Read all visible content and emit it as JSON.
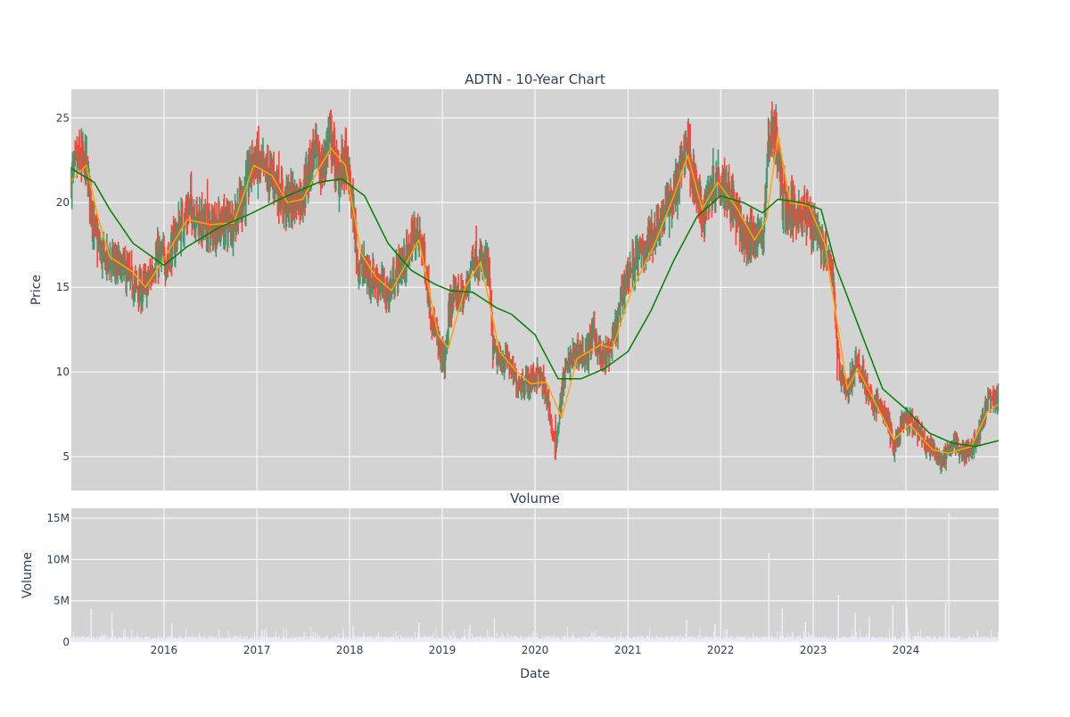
{
  "chart_data": [
    {
      "type": "candlestick",
      "title": "ADTN - 10-Year Chart",
      "ylabel": "Price",
      "xlim": [
        "2015-01-01",
        "2024-12-31"
      ],
      "ylim": [
        3.0,
        26.7
      ],
      "y_ticks": [
        5,
        10,
        15,
        20,
        25
      ],
      "grid": true,
      "colors": {
        "increasing": "#3d9970",
        "decreasing": "#ff4136",
        "ma_short": "#ffa500",
        "ma_long": "#008000",
        "plot_bg": "#d3d3d3"
      },
      "price_path": [
        [
          "2015-01-02",
          21.5
        ],
        [
          "2015-02-01",
          22.6
        ],
        [
          "2015-03-01",
          22.2
        ],
        [
          "2015-04-01",
          18.4
        ],
        [
          "2015-05-01",
          16.8
        ],
        [
          "2015-06-01",
          16.6
        ],
        [
          "2015-07-01",
          16.2
        ],
        [
          "2015-08-01",
          16.0
        ],
        [
          "2015-09-01",
          15.2
        ],
        [
          "2015-10-01",
          14.8
        ],
        [
          "2015-11-01",
          15.3
        ],
        [
          "2015-12-01",
          16.8
        ],
        [
          "2016-01-15",
          16.6
        ],
        [
          "2016-03-01",
          18.5
        ],
        [
          "2016-04-15",
          19.8
        ],
        [
          "2016-06-01",
          18.7
        ],
        [
          "2016-07-01",
          18.4
        ],
        [
          "2016-08-01",
          18.6
        ],
        [
          "2016-10-01",
          19.0
        ],
        [
          "2016-11-15",
          20.5
        ],
        [
          "2016-12-15",
          22.6
        ],
        [
          "2017-02-01",
          21.8
        ],
        [
          "2017-03-15",
          21.4
        ],
        [
          "2017-04-15",
          20.0
        ],
        [
          "2017-06-01",
          20.2
        ],
        [
          "2017-07-01",
          20.6
        ],
        [
          "2017-08-15",
          23.2
        ],
        [
          "2017-09-15",
          21.8
        ],
        [
          "2017-10-15",
          24.2
        ],
        [
          "2017-11-15",
          21.5
        ],
        [
          "2017-12-15",
          22.6
        ],
        [
          "2018-01-10",
          20.2
        ],
        [
          "2018-02-01",
          16.5
        ],
        [
          "2018-03-15",
          15.8
        ],
        [
          "2018-05-01",
          15.2
        ],
        [
          "2018-06-01",
          14.6
        ],
        [
          "2018-07-15",
          16.3
        ],
        [
          "2018-08-15",
          16.7
        ],
        [
          "2018-09-15",
          18.2
        ],
        [
          "2018-10-15",
          17.5
        ],
        [
          "2018-11-15",
          13.8
        ],
        [
          "2018-12-15",
          11.6
        ],
        [
          "2019-01-10",
          10.6
        ],
        [
          "2019-02-01",
          14.0
        ],
        [
          "2019-03-01",
          14.6
        ],
        [
          "2019-04-01",
          14.4
        ],
        [
          "2019-05-01",
          17.0
        ],
        [
          "2019-06-01",
          16.4
        ],
        [
          "2019-07-01",
          16.2
        ],
        [
          "2019-07-20",
          11.2
        ],
        [
          "2019-08-15",
          10.6
        ],
        [
          "2019-09-15",
          10.8
        ],
        [
          "2019-10-15",
          9.4
        ],
        [
          "2019-12-01",
          9.4
        ],
        [
          "2020-01-15",
          9.9
        ],
        [
          "2020-02-20",
          8.4
        ],
        [
          "2020-03-20",
          5.3
        ],
        [
          "2020-04-20",
          9.4
        ],
        [
          "2020-05-20",
          10.8
        ],
        [
          "2020-06-20",
          11.3
        ],
        [
          "2020-07-20",
          10.9
        ],
        [
          "2020-08-20",
          12.4
        ],
        [
          "2020-09-20",
          10.6
        ],
        [
          "2020-10-20",
          11.2
        ],
        [
          "2020-11-20",
          12.8
        ],
        [
          "2020-12-20",
          15.5
        ],
        [
          "2021-02-01",
          16.6
        ],
        [
          "2021-03-15",
          17.5
        ],
        [
          "2021-05-01",
          18.8
        ],
        [
          "2021-06-15",
          20.0
        ],
        [
          "2021-07-15",
          21.0
        ],
        [
          "2021-08-20",
          23.8
        ],
        [
          "2021-09-20",
          21.2
        ],
        [
          "2021-10-20",
          19.2
        ],
        [
          "2021-11-20",
          20.8
        ],
        [
          "2021-12-20",
          21.6
        ],
        [
          "2022-02-01",
          20.8
        ],
        [
          "2022-03-15",
          18.6
        ],
        [
          "2022-04-15",
          17.6
        ],
        [
          "2022-05-15",
          18.2
        ],
        [
          "2022-06-15",
          17.8
        ],
        [
          "2022-07-10",
          23.8
        ],
        [
          "2022-08-01",
          24.6
        ],
        [
          "2022-09-01",
          20.4
        ],
        [
          "2022-10-01",
          19.4
        ],
        [
          "2022-11-01",
          19.6
        ],
        [
          "2022-12-01",
          19.2
        ],
        [
          "2023-01-15",
          18.6
        ],
        [
          "2023-02-15",
          17.0
        ],
        [
          "2023-03-20",
          15.6
        ],
        [
          "2023-04-10",
          10.4
        ],
        [
          "2023-05-15",
          8.8
        ],
        [
          "2023-06-15",
          10.4
        ],
        [
          "2023-07-15",
          10.0
        ],
        [
          "2023-08-15",
          8.2
        ],
        [
          "2023-09-15",
          8.0
        ],
        [
          "2023-10-15",
          7.4
        ],
        [
          "2023-11-15",
          5.5
        ],
        [
          "2023-12-15",
          6.9
        ],
        [
          "2024-01-15",
          7.1
        ],
        [
          "2024-02-15",
          6.6
        ],
        [
          "2024-03-15",
          5.8
        ],
        [
          "2024-04-15",
          5.4
        ],
        [
          "2024-05-15",
          4.7
        ],
        [
          "2024-06-15",
          5.2
        ],
        [
          "2024-07-15",
          5.9
        ],
        [
          "2024-08-15",
          5.2
        ],
        [
          "2024-09-15",
          5.6
        ],
        [
          "2024-10-15",
          6.3
        ],
        [
          "2024-11-15",
          8.2
        ],
        [
          "2024-12-31",
          8.4
        ]
      ],
      "ma_short": [
        [
          "2015-01-02",
          21.3
        ],
        [
          "2015-03-01",
          22.2
        ],
        [
          "2015-04-15",
          19.2
        ],
        [
          "2015-06-01",
          16.8
        ],
        [
          "2015-09-01",
          15.9
        ],
        [
          "2015-10-20",
          15.0
        ],
        [
          "2016-01-01",
          16.7
        ],
        [
          "2016-04-01",
          19.0
        ],
        [
          "2016-07-01",
          18.7
        ],
        [
          "2016-10-01",
          18.8
        ],
        [
          "2016-12-20",
          22.2
        ],
        [
          "2017-03-01",
          21.6
        ],
        [
          "2017-05-01",
          20.0
        ],
        [
          "2017-07-01",
          20.2
        ],
        [
          "2017-09-01",
          22.0
        ],
        [
          "2017-10-20",
          23.2
        ],
        [
          "2017-12-15",
          22.2
        ],
        [
          "2018-02-15",
          17.0
        ],
        [
          "2018-04-15",
          15.6
        ],
        [
          "2018-06-15",
          14.8
        ],
        [
          "2018-08-15",
          16.5
        ],
        [
          "2018-10-01",
          17.8
        ],
        [
          "2018-12-15",
          12.2
        ],
        [
          "2019-01-25",
          11.4
        ],
        [
          "2019-04-01",
          15.0
        ],
        [
          "2019-06-01",
          16.5
        ],
        [
          "2019-08-15",
          11.2
        ],
        [
          "2019-10-15",
          10.1
        ],
        [
          "2019-12-15",
          9.3
        ],
        [
          "2020-02-15",
          9.4
        ],
        [
          "2020-04-15",
          7.3
        ],
        [
          "2020-06-15",
          10.8
        ],
        [
          "2020-09-15",
          11.6
        ],
        [
          "2020-11-01",
          11.4
        ],
        [
          "2021-01-15",
          14.8
        ],
        [
          "2021-04-15",
          17.5
        ],
        [
          "2021-07-01",
          20.4
        ],
        [
          "2021-08-25",
          22.8
        ],
        [
          "2021-10-20",
          19.6
        ],
        [
          "2021-12-20",
          21.2
        ],
        [
          "2022-03-01",
          19.8
        ],
        [
          "2022-05-15",
          17.8
        ],
        [
          "2022-07-01",
          19.0
        ],
        [
          "2022-08-15",
          24.0
        ],
        [
          "2022-10-01",
          20.0
        ],
        [
          "2022-12-15",
          19.8
        ],
        [
          "2023-02-15",
          17.6
        ],
        [
          "2023-04-15",
          12.0
        ],
        [
          "2023-05-15",
          9.0
        ],
        [
          "2023-06-25",
          10.2
        ],
        [
          "2023-09-01",
          8.2
        ],
        [
          "2023-11-15",
          6.0
        ],
        [
          "2024-01-15",
          6.9
        ],
        [
          "2024-04-15",
          5.4
        ],
        [
          "2024-06-15",
          5.2
        ],
        [
          "2024-09-15",
          5.6
        ],
        [
          "2024-11-15",
          7.6
        ],
        [
          "2024-12-31",
          8.1
        ]
      ],
      "ma_long": [
        [
          "2015-01-02",
          22.0
        ],
        [
          "2015-04-01",
          21.2
        ],
        [
          "2015-06-01",
          19.6
        ],
        [
          "2015-09-01",
          17.6
        ],
        [
          "2016-01-01",
          16.3
        ],
        [
          "2016-04-01",
          17.4
        ],
        [
          "2016-08-01",
          18.5
        ],
        [
          "2016-12-01",
          19.3
        ],
        [
          "2017-04-01",
          20.2
        ],
        [
          "2017-09-01",
          21.2
        ],
        [
          "2017-12-01",
          21.4
        ],
        [
          "2018-03-01",
          20.4
        ],
        [
          "2018-06-01",
          17.6
        ],
        [
          "2018-09-01",
          16.0
        ],
        [
          "2018-12-01",
          15.2
        ],
        [
          "2019-02-01",
          14.8
        ],
        [
          "2019-05-01",
          14.7
        ],
        [
          "2019-08-01",
          13.8
        ],
        [
          "2019-10-01",
          13.4
        ],
        [
          "2020-01-01",
          12.2
        ],
        [
          "2020-04-01",
          9.6
        ],
        [
          "2020-07-01",
          9.6
        ],
        [
          "2020-10-01",
          10.2
        ],
        [
          "2021-01-01",
          11.2
        ],
        [
          "2021-04-01",
          13.6
        ],
        [
          "2021-07-01",
          16.6
        ],
        [
          "2021-10-01",
          19.2
        ],
        [
          "2022-01-01",
          20.4
        ],
        [
          "2022-04-01",
          20.0
        ],
        [
          "2022-06-15",
          19.4
        ],
        [
          "2022-08-15",
          20.2
        ],
        [
          "2022-11-15",
          20.0
        ],
        [
          "2023-02-01",
          19.6
        ],
        [
          "2023-04-01",
          16.2
        ],
        [
          "2023-07-01",
          12.6
        ],
        [
          "2023-10-01",
          9.0
        ],
        [
          "2024-01-01",
          7.8
        ],
        [
          "2024-04-01",
          6.4
        ],
        [
          "2024-07-01",
          5.8
        ],
        [
          "2024-10-01",
          5.6
        ],
        [
          "2024-12-31",
          5.95
        ]
      ]
    },
    {
      "type": "bar",
      "title": "Volume",
      "xlabel": "Date",
      "ylabel": "Volume",
      "ylim": [
        0,
        16200000
      ],
      "y_ticks": [
        0,
        5000000,
        10000000,
        15000000
      ],
      "y_tick_labels": [
        "0",
        "5M",
        "10M",
        "15M"
      ],
      "x_ticks": [
        "2016-01-01",
        "2017-01-01",
        "2018-01-01",
        "2019-01-01",
        "2020-01-01",
        "2021-01-01",
        "2022-01-01",
        "2023-01-01",
        "2024-01-01"
      ],
      "x_tick_labels": [
        "2016",
        "2017",
        "2018",
        "2019",
        "2020",
        "2021",
        "2022",
        "2023",
        "2024"
      ],
      "bar_color": "#ececf8",
      "base_volume": 500000,
      "volume_spikes": [
        [
          "2015-03-20",
          4000000
        ],
        [
          "2015-06-10",
          3500000
        ],
        [
          "2016-02-01",
          2300000
        ],
        [
          "2017-01-20",
          1500000
        ],
        [
          "2018-01-15",
          2000000
        ],
        [
          "2018-10-01",
          2400000
        ],
        [
          "2019-04-20",
          2100000
        ],
        [
          "2019-07-25",
          2900000
        ],
        [
          "2021-08-20",
          2700000
        ],
        [
          "2021-12-10",
          2200000
        ],
        [
          "2022-07-10",
          10800000
        ],
        [
          "2022-09-01",
          4000000
        ],
        [
          "2022-12-01",
          2500000
        ],
        [
          "2023-04-10",
          5700000
        ],
        [
          "2023-06-15",
          3500000
        ],
        [
          "2023-08-10",
          3000000
        ],
        [
          "2023-11-10",
          4500000
        ],
        [
          "2024-01-05",
          4200000
        ],
        [
          "2024-06-05",
          4800000
        ],
        [
          "2024-06-18",
          15600000
        ]
      ]
    }
  ]
}
